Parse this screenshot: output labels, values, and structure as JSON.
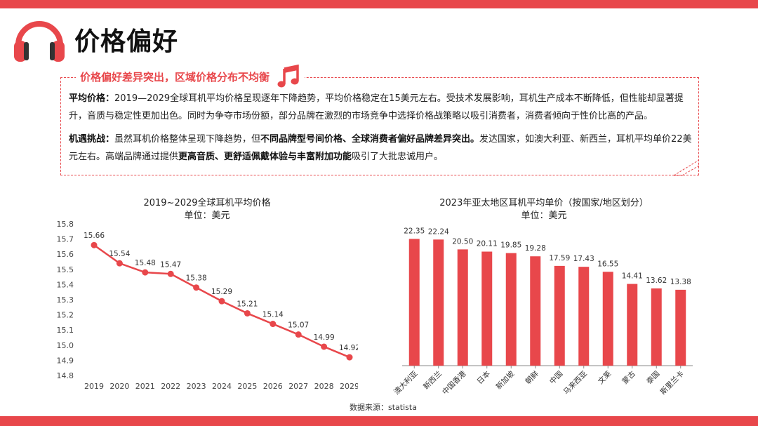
{
  "header": {
    "title": "价格偏好"
  },
  "insight_box": {
    "heading": "价格偏好差异突出，区域价格分布不均衡",
    "p1_label": "平均价格：",
    "p1_text": "2019—2029全球耳机平均价格呈现逐年下降趋势，平均价格稳定在15美元左右。受技术发展影响，耳机生产成本不断降低，但性能却显著提升，音质与稳定性更加出色。同时为争夺市场份额，部分品牌在激烈的市场竞争中选择价格战策略以吸引消费者，消费者倾向于性价比高的产品。",
    "p2_label": "机遇挑战：",
    "p2_text_a": "虽然耳机价格整体呈现下降趋势，但",
    "p2_bold_a": "不同品牌型号间价格、全球消费者偏好品牌差异突出。",
    "p2_text_b": "发达国家，如澳大利亚、新西兰，耳机平均单价22美元左右。高端品牌通过提供",
    "p2_bold_b": "更高音质、更舒适佩戴体验与丰富附加功能",
    "p2_text_c": "吸引了大批忠诚用户。"
  },
  "colors": {
    "accent": "#e8474b",
    "line": "#e8474b",
    "bar": "#e8474b"
  },
  "source": "数据来源：statista",
  "chart_data": [
    {
      "type": "line",
      "title": "2019~2029全球耳机平均价格",
      "subtitle": "单位：美元",
      "x": [
        "2019",
        "2020",
        "2021",
        "2022",
        "2023",
        "2024",
        "2025",
        "2026",
        "2027",
        "2028",
        "2029"
      ],
      "series": [
        {
          "values": [
            15.66,
            15.54,
            15.48,
            15.47,
            15.38,
            15.29,
            15.21,
            15.14,
            15.07,
            14.99,
            14.92
          ]
        }
      ],
      "ylim": [
        14.8,
        15.8
      ],
      "yticks": [
        "15.8",
        "15.7",
        "15.6",
        "15.5",
        "15.4",
        "15.3",
        "15.2",
        "15.1",
        "15.0",
        "14.9",
        "14.8"
      ],
      "grid": false
    },
    {
      "type": "bar",
      "title": "2023年亚太地区耳机平均单价（按国家/地区划分）",
      "subtitle": "单位：美元",
      "categories": [
        "澳大利亚",
        "新西兰",
        "中国香港",
        "日本",
        "新加坡",
        "朝鲜",
        "中国",
        "马来西亚",
        "文莱",
        "蒙古",
        "泰国",
        "斯里兰卡"
      ],
      "values": [
        22.35,
        22.24,
        20.5,
        20.11,
        19.85,
        19.28,
        17.59,
        17.43,
        16.55,
        14.41,
        13.62,
        13.38
      ],
      "ylim": [
        0,
        25
      ],
      "grid": false
    }
  ]
}
